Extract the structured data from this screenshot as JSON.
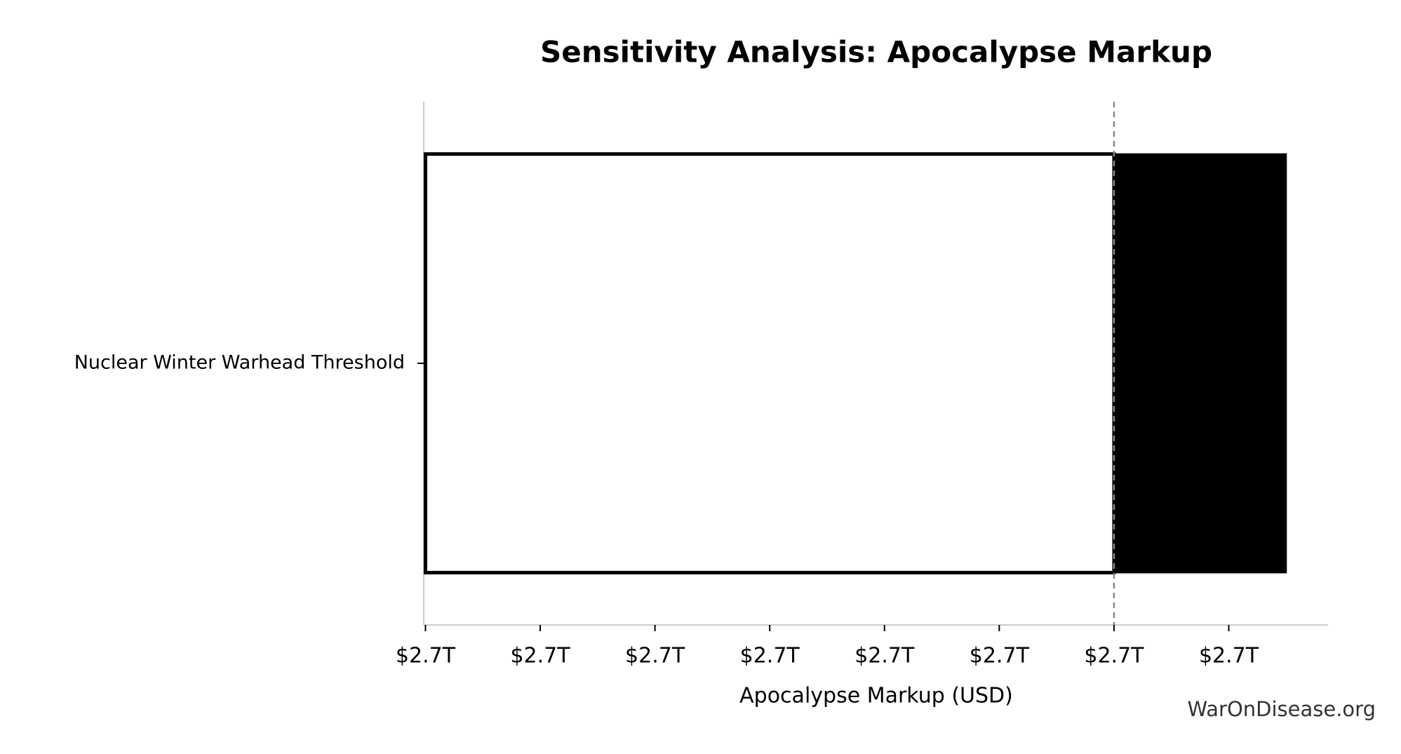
{
  "chart_data": {
    "type": "tornado",
    "title": "Sensitivity Analysis: Apocalypse Markup",
    "xlabel": "Apocalypse Markup (USD)",
    "watermark": "WarOnDisease.org",
    "categories": [
      "Nuclear Winter Warhead Threshold"
    ],
    "low": [
      2690000000000
    ],
    "high": [
      2705000000000
    ],
    "low_color": "#ffffff",
    "high_color": "#000000",
    "baseline": 2702000000000,
    "xlim": [
      2689970000000,
      2705730000000
    ],
    "xticks": [
      {
        "value": 2690000000000,
        "label": "$2.7T"
      },
      {
        "value": 2692000000000,
        "label": "$2.7T"
      },
      {
        "value": 2694000000000,
        "label": "$2.7T"
      },
      {
        "value": 2696000000000,
        "label": "$2.7T"
      },
      {
        "value": 2698000000000,
        "label": "$2.7T"
      },
      {
        "value": 2700000000000,
        "label": "$2.7T"
      },
      {
        "value": 2702000000000,
        "label": "$2.7T"
      },
      {
        "value": 2704000000000,
        "label": "$2.7T"
      }
    ]
  }
}
